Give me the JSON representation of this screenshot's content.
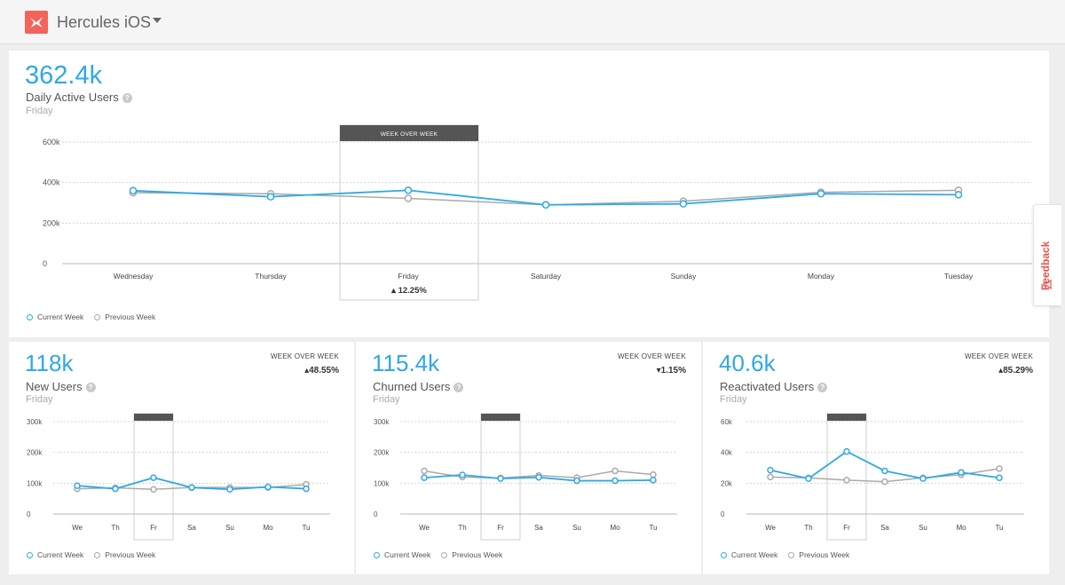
{
  "header": {
    "app_name": "Hercules iOS",
    "logo_icon": "hercules-bird-icon",
    "accent": "#f2645a"
  },
  "colors": {
    "current": "#2fa8e6",
    "previous": "#aaaaaa",
    "highlight_header": "#555555"
  },
  "feedback": {
    "label": "Feedback"
  },
  "legend": {
    "current": "Current Week",
    "previous": "Previous Week"
  },
  "main": {
    "value": "362.4k",
    "name": "Daily Active Users",
    "day": "Friday",
    "highlight_title": "WEEK OVER WEEK",
    "highlight_change": "▴ 12.25%"
  },
  "cards": [
    {
      "value": "118k",
      "name": "New Users",
      "day": "Friday",
      "wow_label": "WEEK OVER WEEK",
      "wow_value": "▴48.55%"
    },
    {
      "value": "115.4k",
      "name": "Churned Users",
      "day": "Friday",
      "wow_label": "WEEK OVER WEEK",
      "wow_value": "▾1.15%"
    },
    {
      "value": "40.6k",
      "name": "Reactivated Users",
      "day": "Friday",
      "wow_label": "WEEK OVER WEEK",
      "wow_value": "▴85.29%"
    }
  ],
  "chart_data": [
    {
      "type": "line",
      "title": "Daily Active Users",
      "x": [
        "Wednesday",
        "Thursday",
        "Friday",
        "Saturday",
        "Sunday",
        "Monday",
        "Tuesday"
      ],
      "y_ticks": [
        "600k",
        "400k",
        "200k",
        "0"
      ],
      "ylim": [
        0,
        600000
      ],
      "grid": true,
      "legend_position": "bottom-left",
      "highlight_index": 2,
      "series": [
        {
          "name": "Current Week",
          "values": [
            360000,
            330000,
            362000,
            290000,
            295000,
            345000,
            340000
          ]
        },
        {
          "name": "Previous Week",
          "values": [
            350000,
            345000,
            322000,
            290000,
            308000,
            352000,
            362000
          ]
        }
      ]
    },
    {
      "type": "line",
      "title": "New Users",
      "x": [
        "We",
        "Th",
        "Fr",
        "Sa",
        "Su",
        "Mo",
        "Tu"
      ],
      "y_ticks": [
        "300k",
        "200k",
        "100k",
        "0"
      ],
      "ylim": [
        0,
        300000
      ],
      "grid": true,
      "legend_position": "bottom-left",
      "highlight_index": 2,
      "series": [
        {
          "name": "Current Week",
          "values": [
            92000,
            82000,
            118000,
            86000,
            80000,
            88000,
            82000
          ]
        },
        {
          "name": "Previous Week",
          "values": [
            82000,
            85000,
            80000,
            86000,
            86000,
            86000,
            96000
          ]
        }
      ]
    },
    {
      "type": "line",
      "title": "Churned Users",
      "x": [
        "We",
        "Th",
        "Fr",
        "Sa",
        "Su",
        "Mo",
        "Tu"
      ],
      "y_ticks": [
        "300k",
        "200k",
        "100k",
        "0"
      ],
      "ylim": [
        0,
        300000
      ],
      "grid": true,
      "legend_position": "bottom-left",
      "highlight_index": 2,
      "series": [
        {
          "name": "Current Week",
          "values": [
            118000,
            127000,
            115000,
            119000,
            108000,
            108000,
            110000
          ]
        },
        {
          "name": "Previous Week",
          "values": [
            140000,
            120000,
            117000,
            125000,
            118000,
            140000,
            128000
          ]
        }
      ]
    },
    {
      "type": "line",
      "title": "Reactivated Users",
      "x": [
        "We",
        "Th",
        "Fr",
        "Sa",
        "Su",
        "Mo",
        "Tu"
      ],
      "y_ticks": [
        "60k",
        "40k",
        "20k",
        "0"
      ],
      "ylim": [
        0,
        60000
      ],
      "grid": true,
      "legend_position": "bottom-left",
      "highlight_index": 2,
      "series": [
        {
          "name": "Current Week",
          "values": [
            28500,
            23000,
            40600,
            28000,
            23000,
            27000,
            23500
          ]
        },
        {
          "name": "Previous Week",
          "values": [
            24000,
            23500,
            22000,
            21000,
            23500,
            25500,
            29500
          ]
        }
      ]
    }
  ]
}
